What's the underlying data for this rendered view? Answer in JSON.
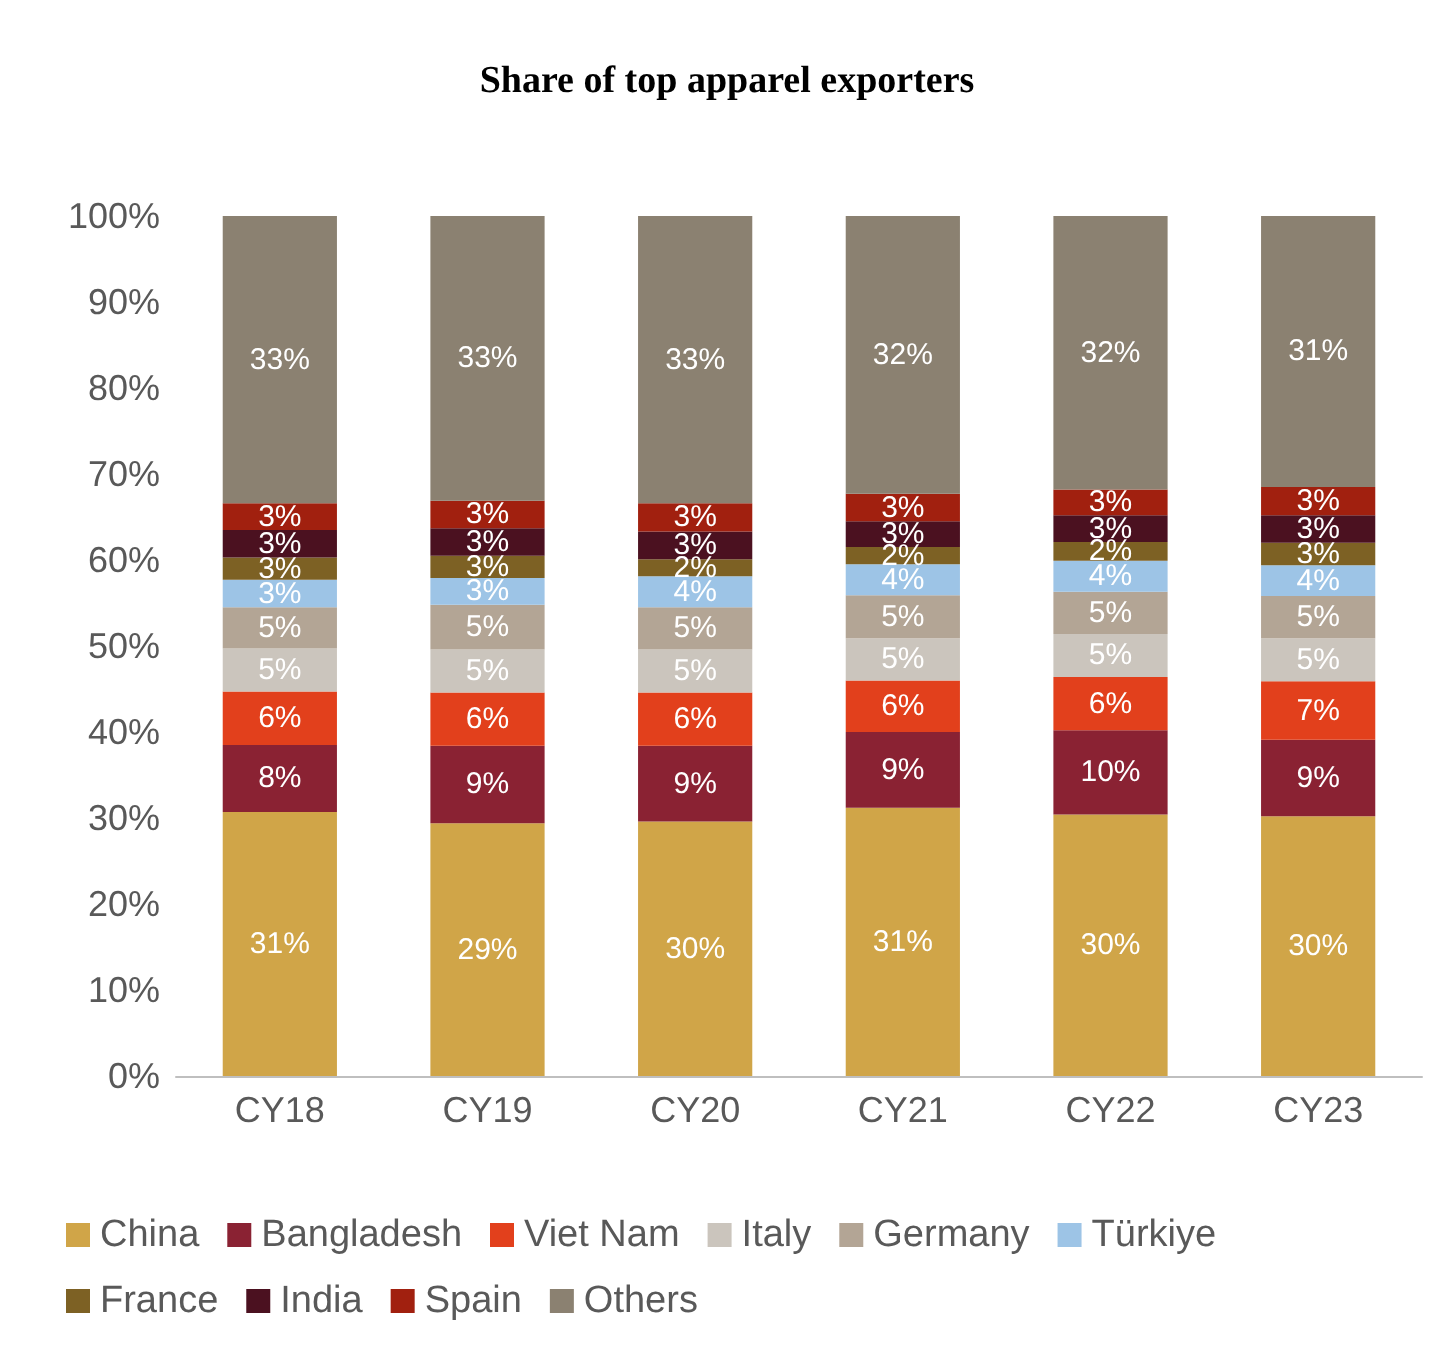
{
  "chart_data": {
    "type": "bar",
    "stacked": true,
    "title": "Share of top apparel exporters",
    "categories": [
      "CY18",
      "CY19",
      "CY20",
      "CY21",
      "CY22",
      "CY23"
    ],
    "ylim": [
      0,
      100
    ],
    "yticks": [
      {
        "value": 0,
        "label": "0%"
      },
      {
        "value": 10,
        "label": "10%"
      },
      {
        "value": 20,
        "label": "20%"
      },
      {
        "value": 30,
        "label": "30%"
      },
      {
        "value": 40,
        "label": "40%"
      },
      {
        "value": 50,
        "label": "50%"
      },
      {
        "value": 60,
        "label": "60%"
      },
      {
        "value": 70,
        "label": "70%"
      },
      {
        "value": 80,
        "label": "80%"
      },
      {
        "value": 90,
        "label": "90%"
      },
      {
        "value": 100,
        "label": "100%"
      }
    ],
    "grid": false,
    "legend": "bottom",
    "series": [
      {
        "name": "China",
        "color": "#d0a548",
        "values": [
          30.7,
          29.4,
          29.6,
          31.2,
          30.4,
          30.2
        ],
        "value_labels": [
          "31%",
          "29%",
          "30%",
          "31%",
          "30%",
          "30%"
        ]
      },
      {
        "name": "Bangladesh",
        "color": "#8a2233",
        "values": [
          7.8,
          9.0,
          8.8,
          8.8,
          9.8,
          8.9
        ],
        "value_labels": [
          "8%",
          "9%",
          "9%",
          "9%",
          "10%",
          "9%"
        ]
      },
      {
        "name": "Viet Nam",
        "color": "#e2401c",
        "values": [
          6.2,
          6.2,
          6.2,
          6.0,
          6.2,
          6.8
        ],
        "value_labels": [
          "6%",
          "6%",
          "6%",
          "6%",
          "6%",
          "7%"
        ]
      },
      {
        "name": "Italy",
        "color": "#cbc5bd",
        "values": [
          5.0,
          5.0,
          5.0,
          4.9,
          5.0,
          5.0
        ],
        "value_labels": [
          "5%",
          "5%",
          "5%",
          "5%",
          "5%",
          "5%"
        ]
      },
      {
        "name": "Germany",
        "color": "#b3a595",
        "values": [
          4.8,
          5.2,
          4.9,
          5.0,
          4.9,
          4.9
        ],
        "value_labels": [
          "5%",
          "5%",
          "5%",
          "5%",
          "5%",
          "5%"
        ]
      },
      {
        "name": "Türkiye",
        "color": "#9dc4e6",
        "values": [
          3.2,
          3.1,
          3.6,
          3.6,
          3.6,
          3.6
        ],
        "value_labels": [
          "3%",
          "3%",
          "4%",
          "4%",
          "4%",
          "4%"
        ]
      },
      {
        "name": "France",
        "color": "#7d6124",
        "values": [
          2.6,
          2.6,
          2.0,
          2.0,
          2.2,
          2.6
        ],
        "value_labels": [
          "3%",
          "3%",
          "2%",
          "2%",
          "2%",
          "3%"
        ]
      },
      {
        "name": "India",
        "color": "#4b1120",
        "values": [
          3.2,
          3.2,
          3.2,
          3.0,
          3.1,
          3.2
        ],
        "value_labels": [
          "3%",
          "3%",
          "3%",
          "3%",
          "3%",
          "3%"
        ]
      },
      {
        "name": "Spain",
        "color": "#a1200f",
        "values": [
          3.1,
          3.2,
          3.3,
          3.2,
          3.0,
          3.3
        ],
        "value_labels": [
          "3%",
          "3%",
          "3%",
          "3%",
          "3%",
          "3%"
        ]
      },
      {
        "name": "Others",
        "color": "#8b8171",
        "values": [
          33.4,
          33.1,
          33.4,
          32.3,
          31.8,
          31.5
        ],
        "value_labels": [
          "33%",
          "33%",
          "33%",
          "32%",
          "32%",
          "31%"
        ]
      }
    ]
  }
}
